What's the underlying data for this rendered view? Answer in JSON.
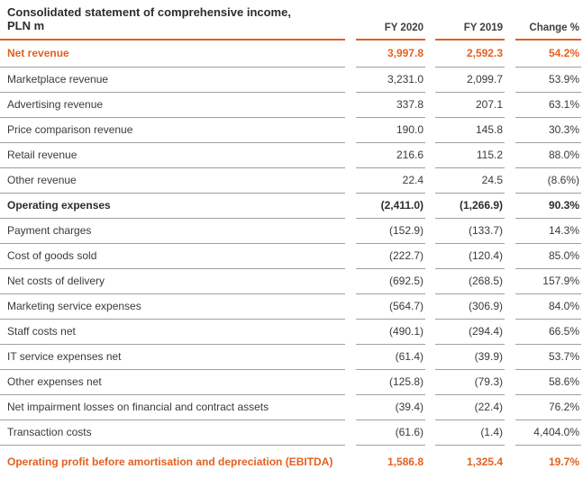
{
  "table": {
    "title_line1": "Consolidated statement of comprehensive income,",
    "title_line2": "PLN m",
    "columns": [
      "FY 2020",
      "FY 2019",
      "Change %"
    ],
    "colors": {
      "accent_orange": "#e2601f",
      "row_separator_gray": "#9f9f9e",
      "body_text": "#3a3a39",
      "title_text": "#2d2d2c"
    },
    "rows": [
      {
        "label": "Net revenue",
        "fy2020": "3,997.8",
        "fy2019": "2,592.3",
        "change": "54.2%",
        "style": "orange-bold"
      },
      {
        "label": "Marketplace revenue",
        "fy2020": "3,231.0",
        "fy2019": "2,099.7",
        "change": "53.9%",
        "style": "normal"
      },
      {
        "label": "Advertising revenue",
        "fy2020": "337.8",
        "fy2019": "207.1",
        "change": "63.1%",
        "style": "normal"
      },
      {
        "label": "Price comparison revenue",
        "fy2020": "190.0",
        "fy2019": "145.8",
        "change": "30.3%",
        "style": "normal"
      },
      {
        "label": "Retail revenue",
        "fy2020": "216.6",
        "fy2019": "115.2",
        "change": "88.0%",
        "style": "normal"
      },
      {
        "label": "Other revenue",
        "fy2020": "22.4",
        "fy2019": "24.5",
        "change": "(8.6%)",
        "style": "normal"
      },
      {
        "label": "Operating expenses",
        "fy2020": "(2,411.0)",
        "fy2019": "(1,266.9)",
        "change": "90.3%",
        "style": "bold"
      },
      {
        "label": "Payment charges",
        "fy2020": "(152.9)",
        "fy2019": "(133.7)",
        "change": "14.3%",
        "style": "normal"
      },
      {
        "label": "Cost of goods sold",
        "fy2020": "(222.7)",
        "fy2019": "(120.4)",
        "change": "85.0%",
        "style": "normal"
      },
      {
        "label": "Net costs of delivery",
        "fy2020": "(692.5)",
        "fy2019": "(268.5)",
        "change": "157.9%",
        "style": "normal"
      },
      {
        "label": "Marketing service expenses",
        "fy2020": "(564.7)",
        "fy2019": "(306.9)",
        "change": "84.0%",
        "style": "normal"
      },
      {
        "label": "Staff costs net",
        "fy2020": "(490.1)",
        "fy2019": "(294.4)",
        "change": "66.5%",
        "style": "normal"
      },
      {
        "label": "IT service expenses net",
        "fy2020": "(61.4)",
        "fy2019": "(39.9)",
        "change": "53.7%",
        "style": "normal"
      },
      {
        "label": "Other expenses net",
        "fy2020": "(125.8)",
        "fy2019": "(79.3)",
        "change": "58.6%",
        "style": "normal"
      },
      {
        "label": "Net impairment losses on financial and contract assets",
        "fy2020": "(39.4)",
        "fy2019": "(22.4)",
        "change": "76.2%",
        "style": "normal"
      },
      {
        "label": "Transaction costs",
        "fy2020": "(61.6)",
        "fy2019": "(1.4)",
        "change": "4,404.0%",
        "style": "normal"
      },
      {
        "label": "Operating profit before amortisation and depreciation (EBITDA)",
        "fy2020": "1,586.8",
        "fy2019": "1,325.4",
        "change": "19.7%",
        "style": "orange-bold"
      }
    ]
  }
}
